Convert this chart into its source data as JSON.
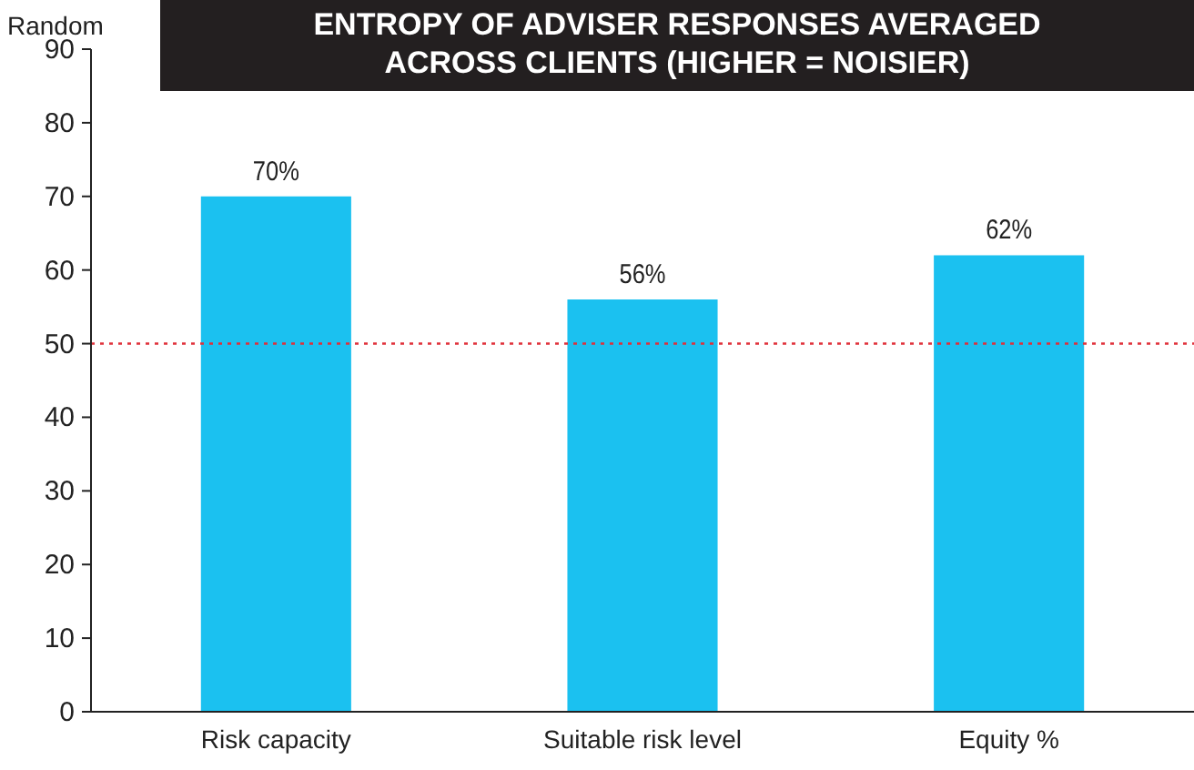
{
  "chart_data": {
    "type": "bar",
    "title": "ENTROPY OF ADVISER RESPONSES AVERAGED ACROSS CLIENTS (HIGHER = NOISIER)",
    "ylabel": "Random",
    "categories": [
      "Risk capacity",
      "Suitable risk level",
      "Equity %"
    ],
    "series": [
      {
        "color": "#1bc1f0",
        "values": [
          70,
          56,
          62
        ],
        "value_labels": [
          "70%",
          "56%",
          "62%"
        ]
      }
    ],
    "ylim": [
      0,
      90
    ],
    "yticks": [
      0,
      10,
      20,
      30,
      40,
      50,
      60,
      70,
      80,
      90
    ],
    "grid": false,
    "ref_lines": [
      {
        "axis": "y",
        "value": 50,
        "color": "#e0303a",
        "line_style": "dotted"
      }
    ]
  }
}
